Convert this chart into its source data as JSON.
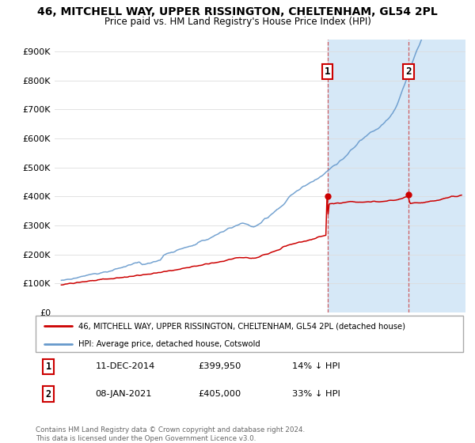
{
  "title": "46, MITCHELL WAY, UPPER RISSINGTON, CHELTENHAM, GL54 2PL",
  "subtitle": "Price paid vs. HM Land Registry's House Price Index (HPI)",
  "legend_line1": "46, MITCHELL WAY, UPPER RISSINGTON, CHELTENHAM, GL54 2PL (detached house)",
  "legend_line2": "HPI: Average price, detached house, Cotswold",
  "annotation1_date": "11-DEC-2014",
  "annotation1_price": "£399,950",
  "annotation1_hpi": "14% ↓ HPI",
  "annotation2_date": "08-JAN-2021",
  "annotation2_price": "£405,000",
  "annotation2_hpi": "33% ↓ HPI",
  "footnote": "Contains HM Land Registry data © Crown copyright and database right 2024.\nThis data is licensed under the Open Government Licence v3.0.",
  "sale_color": "#cc0000",
  "hpi_color": "#6699cc",
  "hpi_fill_color": "#d6e8f7",
  "sale1_year": 2014.95,
  "sale1_value": 399950,
  "sale2_year": 2021.04,
  "sale2_value": 405000,
  "ylim_max": 900000,
  "xlim_start": 1994.5,
  "xlim_end": 2025.3
}
